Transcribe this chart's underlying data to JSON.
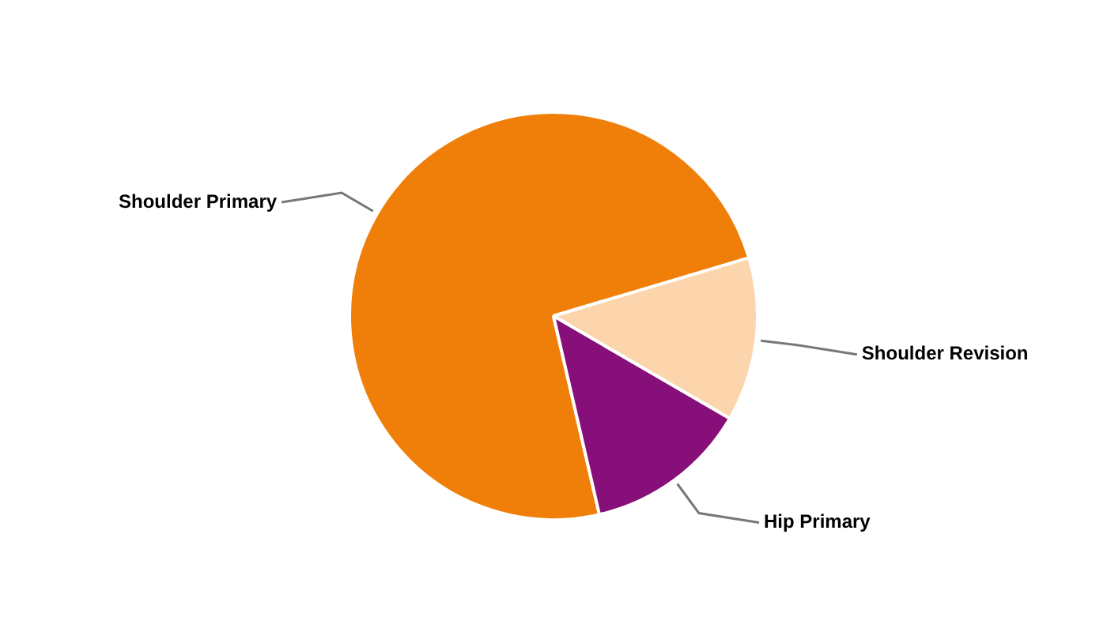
{
  "chart_data": {
    "type": "pie",
    "categories": [
      "Shoulder Primary",
      "Shoulder Revision",
      "Hip Primary"
    ],
    "values": [
      74,
      13,
      13
    ],
    "colors": [
      "#f07f09",
      "#fcd5ac",
      "#870f79"
    ],
    "legend": false
  }
}
